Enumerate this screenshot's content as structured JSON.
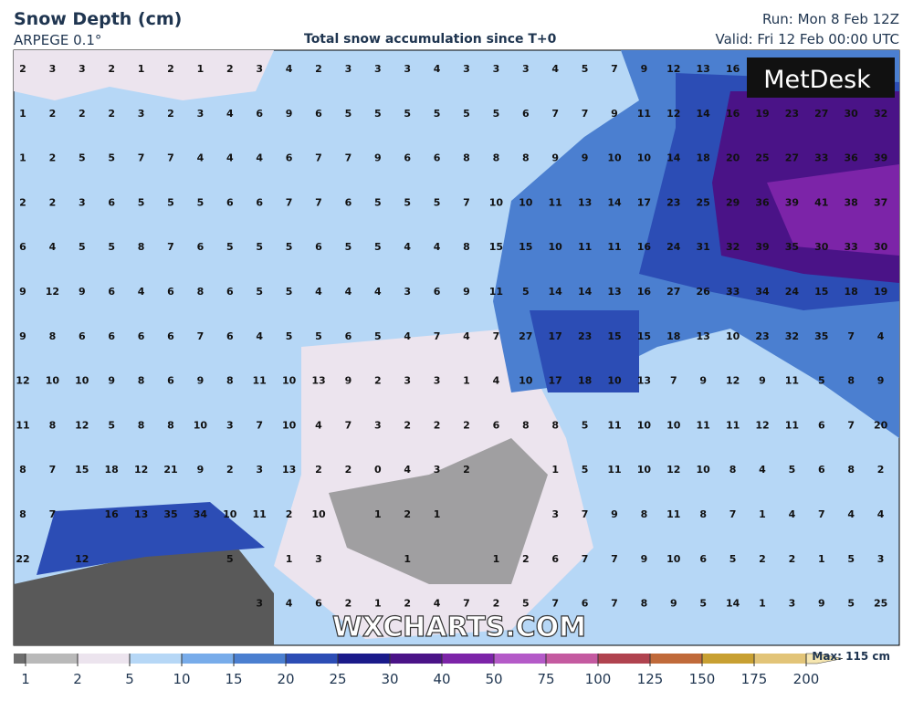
{
  "header": {
    "title": "Snow Depth (cm)",
    "model": "ARPEGE 0.1°",
    "subtitle": "Total snow accumulation since T+0",
    "run": "Run: Mon 8 Feb 12Z",
    "valid": "Valid: Fri 12 Feb 00:00 UTC"
  },
  "logo": "MetDesk",
  "watermark": "WXCHARTS.COM",
  "grid": {
    "rows": [
      [
        2,
        3,
        3,
        2,
        1,
        2,
        1,
        2,
        3,
        4,
        2,
        3,
        3,
        3,
        4,
        3,
        3,
        3,
        4,
        5,
        7,
        9,
        12,
        13,
        16,
        null,
        null,
        null,
        null,
        null
      ],
      [
        1,
        2,
        2,
        2,
        3,
        2,
        3,
        4,
        6,
        9,
        6,
        5,
        5,
        5,
        5,
        5,
        5,
        6,
        7,
        7,
        9,
        11,
        12,
        14,
        16,
        19,
        23,
        27,
        30,
        32
      ],
      [
        1,
        2,
        5,
        5,
        7,
        7,
        4,
        4,
        4,
        6,
        7,
        7,
        9,
        6,
        6,
        8,
        8,
        8,
        9,
        9,
        10,
        10,
        14,
        18,
        20,
        25,
        27,
        33,
        36,
        39
      ],
      [
        2,
        2,
        3,
        6,
        5,
        5,
        5,
        6,
        6,
        7,
        7,
        6,
        5,
        5,
        5,
        7,
        10,
        10,
        11,
        13,
        14,
        17,
        23,
        25,
        29,
        36,
        39,
        41,
        38,
        37
      ],
      [
        6,
        4,
        5,
        5,
        8,
        7,
        6,
        5,
        5,
        5,
        6,
        5,
        5,
        4,
        4,
        8,
        15,
        15,
        10,
        11,
        11,
        16,
        24,
        31,
        32,
        39,
        35,
        30,
        33,
        30
      ],
      [
        9,
        12,
        9,
        6,
        4,
        6,
        8,
        6,
        5,
        5,
        4,
        4,
        4,
        3,
        6,
        9,
        11,
        5,
        14,
        14,
        13,
        16,
        27,
        26,
        33,
        34,
        24,
        15,
        18,
        19
      ],
      [
        9,
        8,
        6,
        6,
        6,
        6,
        7,
        6,
        4,
        5,
        5,
        6,
        5,
        4,
        7,
        4,
        7,
        27,
        17,
        23,
        15,
        15,
        18,
        13,
        10,
        23,
        32,
        35,
        7,
        4
      ],
      [
        12,
        10,
        10,
        9,
        8,
        6,
        9,
        8,
        11,
        10,
        13,
        9,
        2,
        3,
        3,
        1,
        4,
        10,
        17,
        18,
        10,
        13,
        7,
        9,
        12,
        9,
        11,
        5,
        8,
        9
      ],
      [
        11,
        8,
        12,
        5,
        8,
        8,
        10,
        3,
        7,
        10,
        4,
        7,
        3,
        2,
        2,
        2,
        6,
        8,
        8,
        5,
        11,
        10,
        10,
        11,
        11,
        12,
        11,
        6,
        7,
        20
      ],
      [
        8,
        7,
        15,
        18,
        12,
        21,
        9,
        2,
        3,
        13,
        2,
        2,
        0,
        4,
        3,
        2,
        null,
        null,
        1,
        5,
        11,
        10,
        12,
        10,
        8,
        4,
        5,
        6,
        8,
        2
      ],
      [
        8,
        7,
        null,
        16,
        13,
        35,
        34,
        10,
        11,
        2,
        10,
        null,
        1,
        2,
        1,
        null,
        null,
        null,
        3,
        7,
        9,
        8,
        11,
        8,
        7,
        1,
        4,
        7,
        4,
        4
      ],
      [
        22,
        null,
        12,
        null,
        null,
        null,
        null,
        5,
        null,
        1,
        3,
        null,
        null,
        1,
        null,
        null,
        1,
        2,
        6,
        7,
        7,
        9,
        10,
        6,
        5,
        2,
        2,
        1,
        5,
        3
      ],
      [
        null,
        null,
        null,
        null,
        null,
        null,
        null,
        null,
        3,
        4,
        6,
        2,
        1,
        2,
        4,
        7,
        2,
        5,
        7,
        6,
        7,
        8,
        9,
        5,
        14,
        1,
        3,
        9,
        5,
        25
      ]
    ]
  },
  "legend": {
    "max": "Max: 115 cm",
    "under_color": "#6e6e6e",
    "items": [
      {
        "label": 1,
        "color": "#b9b9b9"
      },
      {
        "label": 2,
        "color": "#ece4ee"
      },
      {
        "label": 5,
        "color": "#b6d7f6"
      },
      {
        "label": 10,
        "color": "#78acea"
      },
      {
        "label": 15,
        "color": "#4b7fd0"
      },
      {
        "label": 20,
        "color": "#2c4db5"
      },
      {
        "label": 25,
        "color": "#1a1a8a"
      },
      {
        "label": 30,
        "color": "#4a1387"
      },
      {
        "label": 40,
        "color": "#7c24a8"
      },
      {
        "label": 50,
        "color": "#b45ac8"
      },
      {
        "label": 75,
        "color": "#c45aa0"
      },
      {
        "label": 100,
        "color": "#b0434f"
      },
      {
        "label": 125,
        "color": "#c06a3a"
      },
      {
        "label": 150,
        "color": "#c8a032"
      },
      {
        "label": 175,
        "color": "#e2c478"
      },
      {
        "label": 200,
        "color": "#f6e6b0"
      }
    ]
  }
}
